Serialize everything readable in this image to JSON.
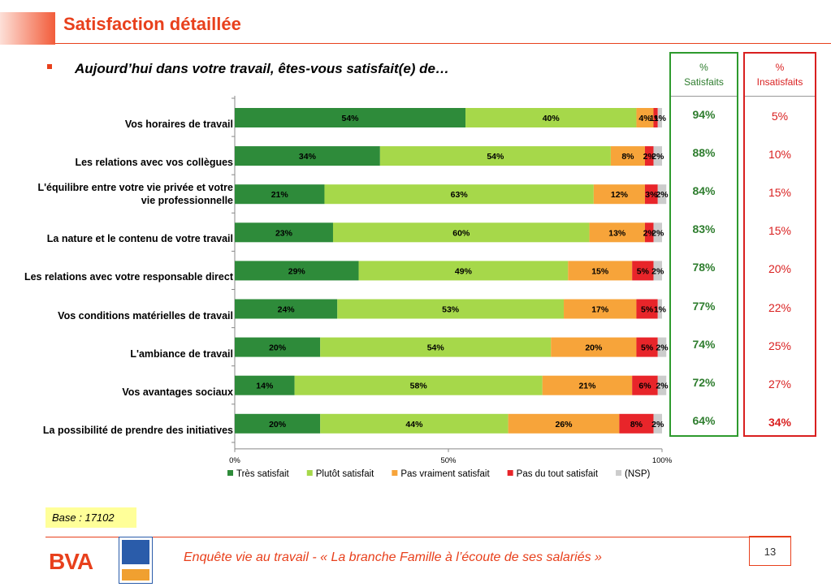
{
  "page": {
    "title": "Satisfaction détaillée",
    "question": "Aujourd’hui dans votre travail, êtes-vous satisfait(e) de…",
    "base": "Base : 17102",
    "footer": "Enquête vie au travail - « La branche Famille à l’écoute de ses salariés »",
    "page_number": "13",
    "logo_text": "BVA",
    "accent_color": "#e8401c"
  },
  "summary": {
    "satisfied_header_line1": "%",
    "satisfied_header_line2": "Satisfaits",
    "unsatisfied_header_line1": "%",
    "unsatisfied_header_line2": "Insatisfaits",
    "satisfied": [
      "94%",
      "88%",
      "84%",
      "83%",
      "78%",
      "77%",
      "74%",
      "72%",
      "64%"
    ],
    "unsatisfied": [
      "5%",
      "10%",
      "15%",
      "15%",
      "20%",
      "22%",
      "25%",
      "27%",
      "34%"
    ]
  },
  "chart_data": {
    "type": "bar",
    "orientation": "horizontal",
    "stacked": true,
    "categories": [
      "Vos horaires de travail",
      "Les relations avec vos collègues",
      "L'équilibre entre votre vie privée et votre vie professionnelle",
      "La nature et le contenu de votre travail",
      "Les relations avec votre responsable direct",
      "Vos conditions matérielles de travail",
      "L'ambiance de travail",
      "Vos avantages sociaux",
      "La possibilité de prendre des initiatives"
    ],
    "category_lines": [
      [
        "Vos horaires de travail"
      ],
      [
        "Les relations avec vos collègues"
      ],
      [
        "L'équilibre entre votre vie privée et votre",
        "vie professionnelle"
      ],
      [
        "La nature et le contenu de votre travail"
      ],
      [
        "Les relations avec votre responsable direct"
      ],
      [
        "Vos conditions matérielles de travail"
      ],
      [
        "L'ambiance de travail"
      ],
      [
        "Vos avantages sociaux"
      ],
      [
        "La possibilité de prendre des initiatives"
      ]
    ],
    "series": [
      {
        "name": "Très satisfait",
        "color": "#2e8b3a",
        "values": [
          54,
          34,
          21,
          23,
          29,
          24,
          20,
          14,
          20
        ]
      },
      {
        "name": "Plutôt satisfait",
        "color": "#a6d84a",
        "values": [
          40,
          54,
          63,
          60,
          49,
          53,
          54,
          58,
          44
        ]
      },
      {
        "name": "Pas vraiment satisfait",
        "color": "#f7a43a",
        "values": [
          4,
          8,
          12,
          13,
          15,
          17,
          20,
          21,
          26
        ]
      },
      {
        "name": "Pas du tout satisfait",
        "color": "#e8252a",
        "values": [
          1,
          2,
          3,
          2,
          5,
          5,
          5,
          6,
          8
        ]
      },
      {
        "name": "(NSP)",
        "color": "#cccccc",
        "values": [
          1,
          2,
          2,
          2,
          2,
          1,
          2,
          2,
          2
        ]
      }
    ],
    "x_ticks": [
      "0%",
      "50%",
      "100%"
    ],
    "xlim": [
      0,
      100
    ],
    "legend_position": "bottom",
    "grid": false
  }
}
